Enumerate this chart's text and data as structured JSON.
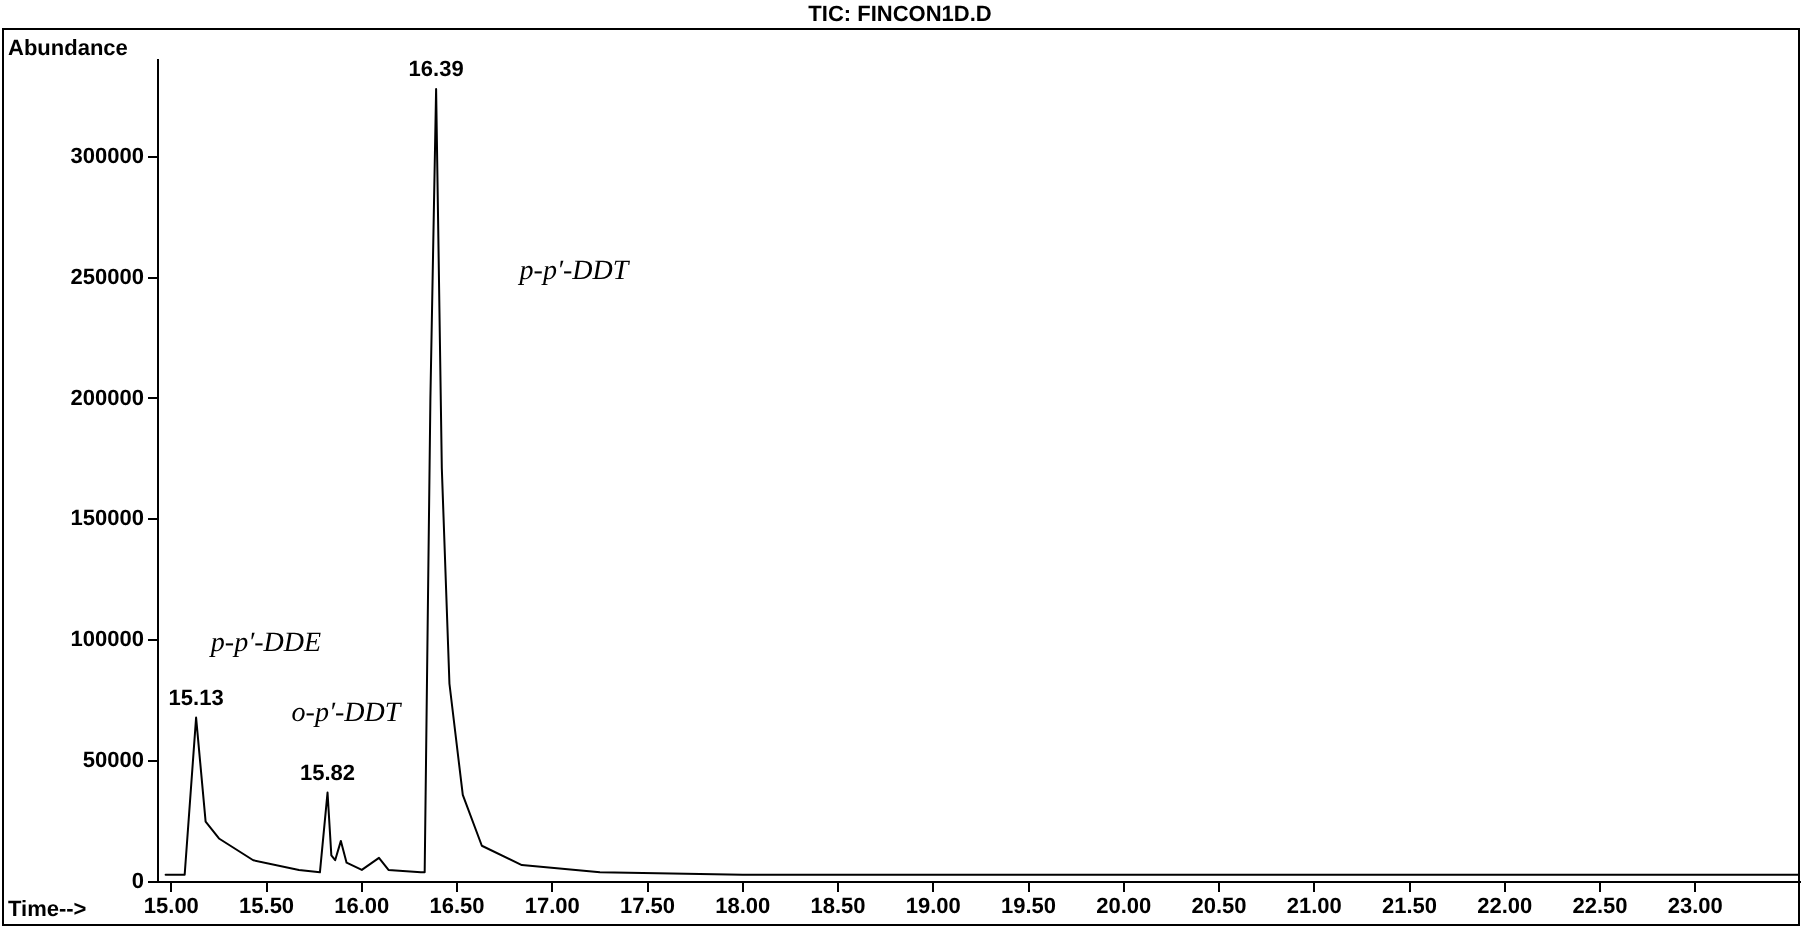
{
  "chart_data": {
    "type": "line",
    "title": "TIC: FINCON1D.D",
    "xlabel": "Time-->",
    "ylabel": "Abundance",
    "x": [
      14.97,
      15.07,
      15.13,
      15.18,
      15.25,
      15.43,
      15.67,
      15.78,
      15.82,
      15.84,
      15.86,
      15.89,
      15.92,
      16.0,
      16.09,
      16.14,
      16.31,
      16.33,
      16.36,
      16.39,
      16.42,
      16.46,
      16.53,
      16.63,
      16.84,
      17.25,
      18.0,
      19.0,
      20.0,
      21.0,
      22.0,
      23.0,
      23.55
    ],
    "series": [
      {
        "color": "#000000",
        "values": [
          3000,
          3000,
          68000,
          25000,
          18000,
          9000,
          5000,
          4000,
          37000,
          11000,
          9000,
          17000,
          8000,
          5000,
          10000,
          5000,
          4000,
          4000,
          200000,
          328000,
          171000,
          82000,
          36000,
          15000,
          7000,
          4000,
          3000,
          3000,
          3000,
          3000,
          3000,
          3000,
          3000
        ]
      }
    ],
    "xlim": [
      14.93,
      23.55
    ],
    "ylim": [
      0,
      340000
    ],
    "xticks": [
      {
        "value": 15,
        "label": "15.00"
      },
      {
        "value": 15.5,
        "label": "15.50"
      },
      {
        "value": 16,
        "label": "16.00"
      },
      {
        "value": 16.5,
        "label": "16.50"
      },
      {
        "value": 17,
        "label": "17.00"
      },
      {
        "value": 17.5,
        "label": "17.50"
      },
      {
        "value": 18,
        "label": "18.00"
      },
      {
        "value": 18.5,
        "label": "18.50"
      },
      {
        "value": 19,
        "label": "19.00"
      },
      {
        "value": 19.5,
        "label": "19.50"
      },
      {
        "value": 20,
        "label": "20.00"
      },
      {
        "value": 20.5,
        "label": "20.50"
      },
      {
        "value": 21,
        "label": "21.00"
      },
      {
        "value": 21.5,
        "label": "21.50"
      },
      {
        "value": 22,
        "label": "22.00"
      },
      {
        "value": 22.5,
        "label": "22.50"
      },
      {
        "value": 23,
        "label": "23.00"
      }
    ],
    "yticks": [
      0,
      50000,
      100000,
      150000,
      200000,
      250000,
      300000
    ],
    "grid": false,
    "legend": false,
    "marker": "none",
    "line_style": "solid",
    "annotations": [
      {
        "text": "16.39",
        "x": 16.39,
        "y": 328000
      },
      {
        "text": "15.13",
        "x": 15.13,
        "y": 68000
      },
      {
        "text": "15.82",
        "x": 15.82,
        "y": 37000
      },
      "p-p′-DDE",
      "o-p′-DDT",
      "p-p′-DDT"
    ]
  }
}
